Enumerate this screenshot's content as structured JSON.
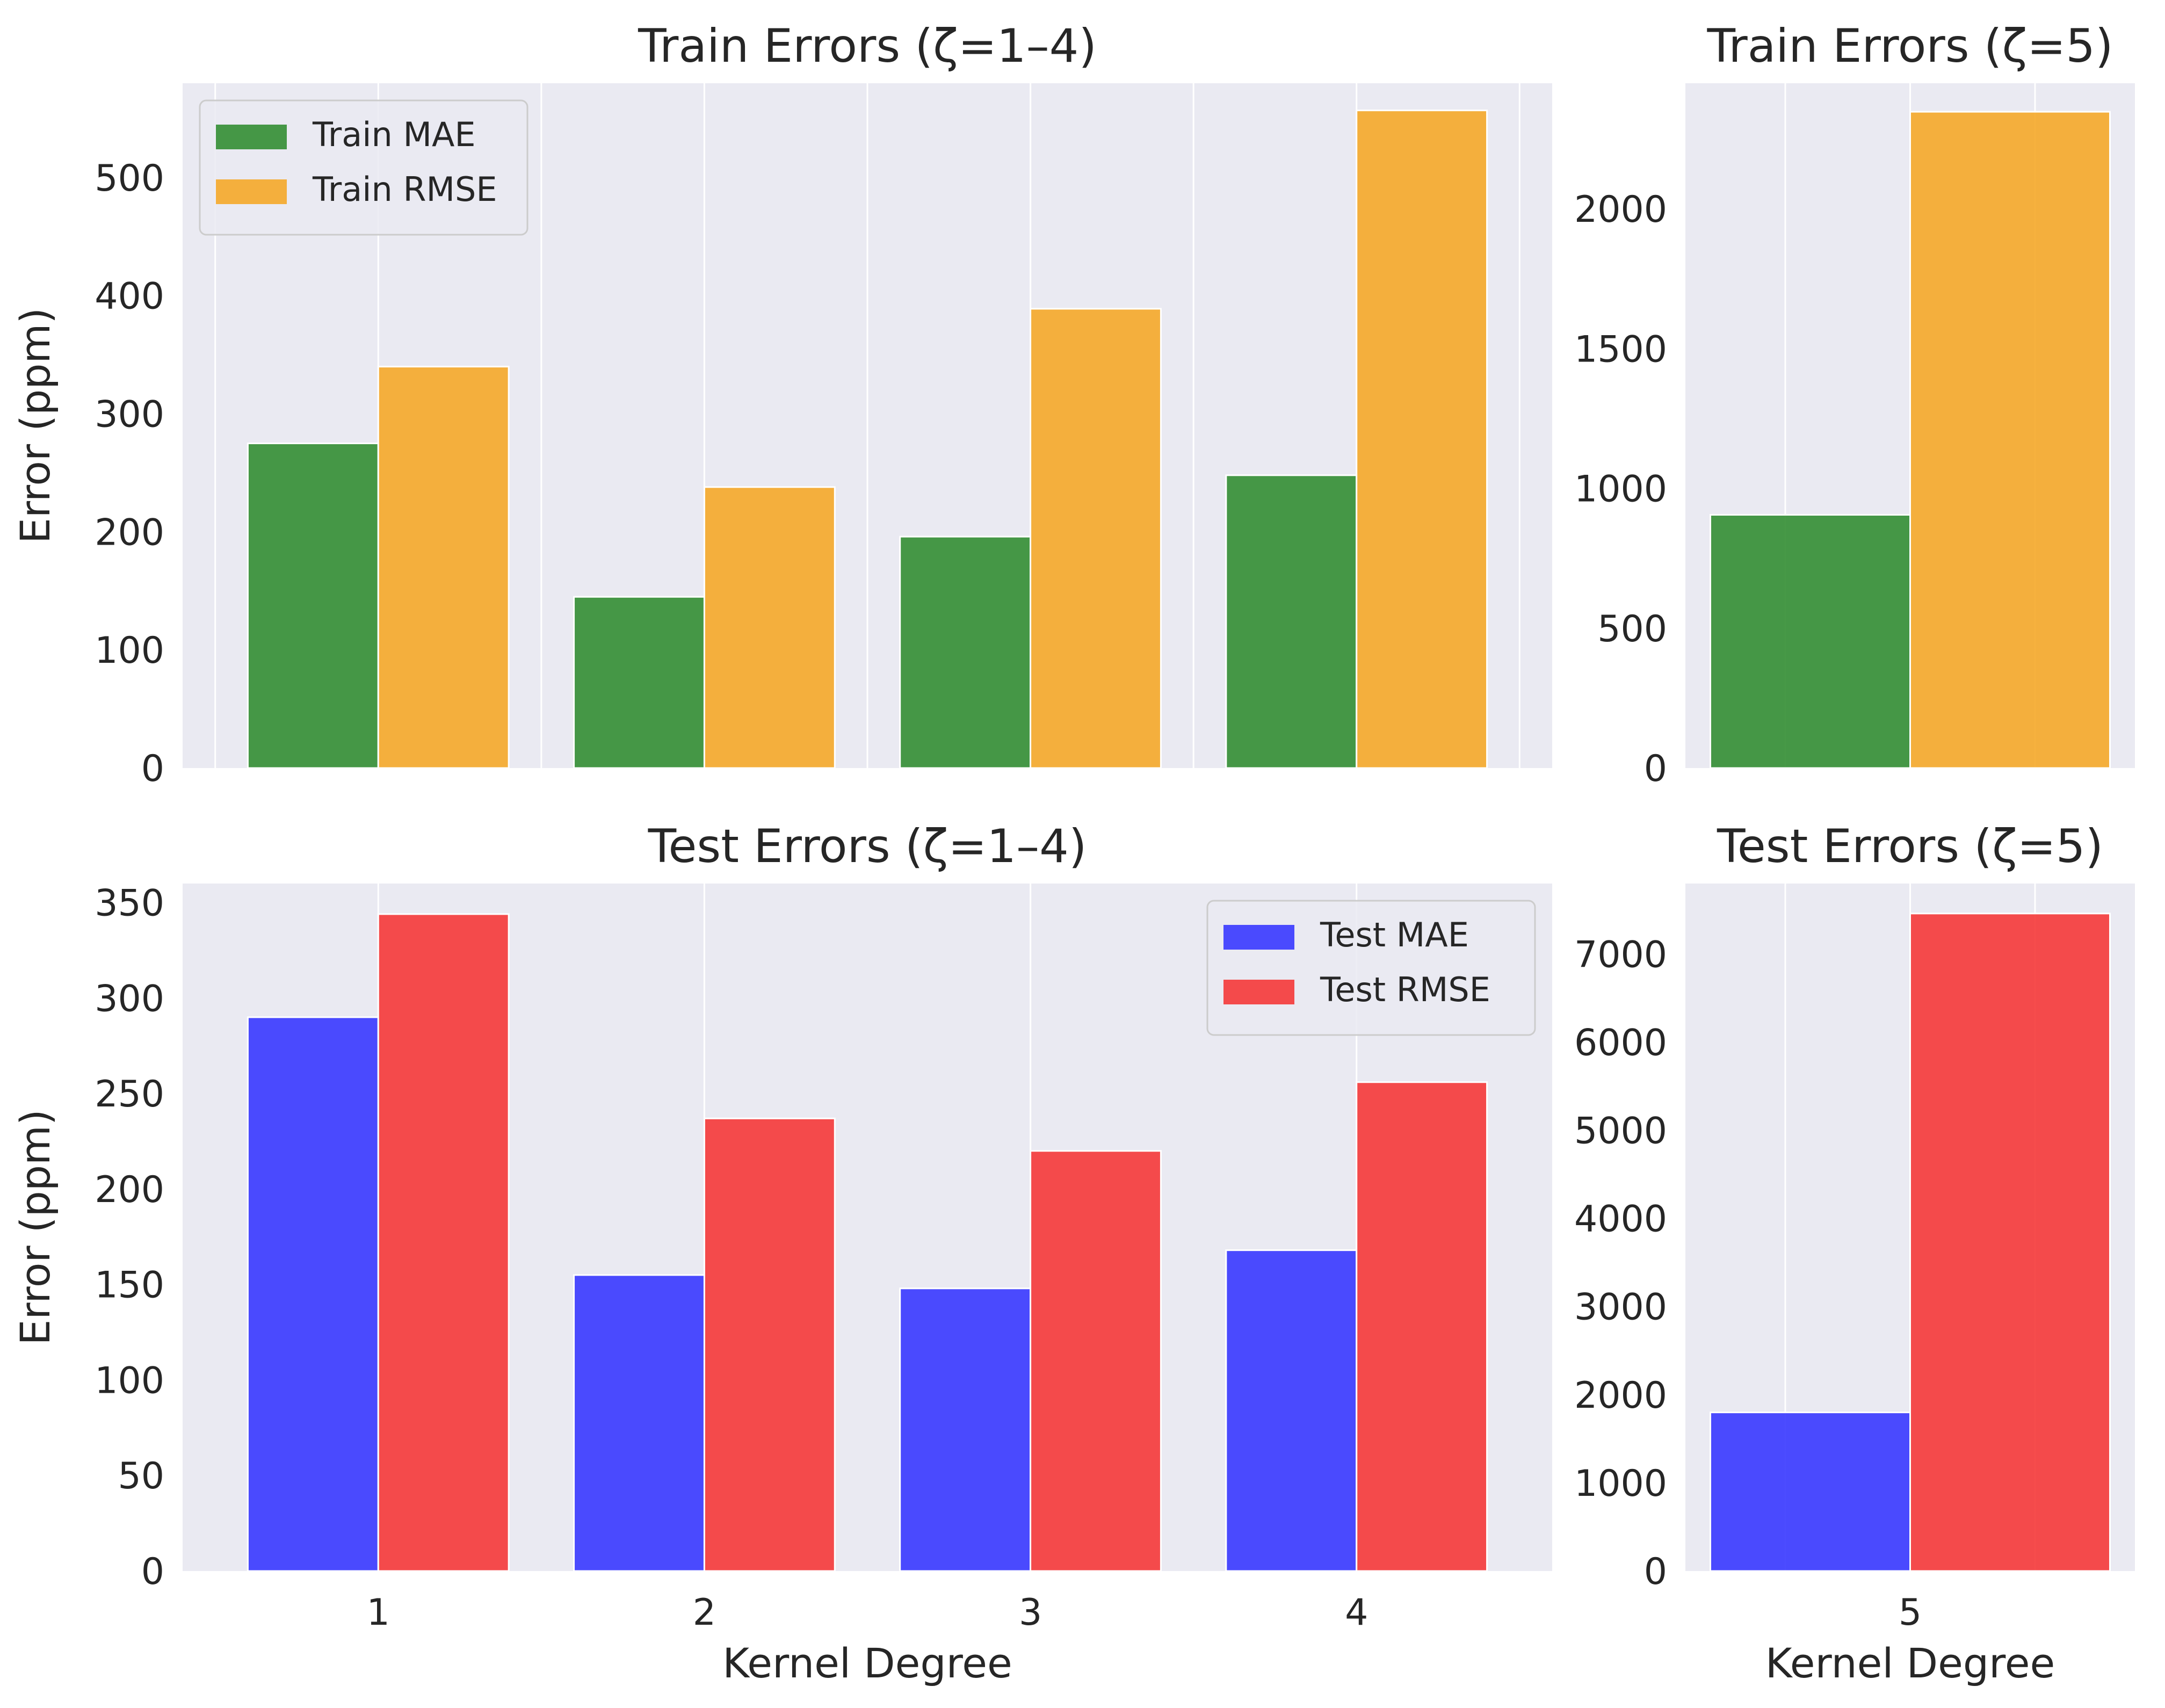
{
  "colors": {
    "axes_bg": "#EAEAF2",
    "grid": "#FFFFFF",
    "text": "#262626",
    "train_mae": "#2E8B2E",
    "train_rmse": "#F5A623",
    "test_mae": "#3333FF",
    "test_rmse": "#F53333"
  },
  "chart_data": [
    {
      "id": "train_1_4",
      "type": "bar",
      "title": "Train Errors (ζ=1–4)",
      "ylabel": "Error (ppm)",
      "xlabel": "",
      "categories": [
        "1",
        "2",
        "3",
        "4"
      ],
      "show_x_ticklabels": false,
      "series": [
        {
          "name": "Train MAE",
          "values": [
            275,
            145,
            196,
            248
          ],
          "color_key": "train_mae"
        },
        {
          "name": "Train RMSE",
          "values": [
            340,
            238,
            389,
            557
          ],
          "color_key": "train_rmse"
        }
      ],
      "ylim": [
        0,
        580
      ],
      "yticks": [
        0,
        100,
        200,
        300,
        400,
        500
      ],
      "xlim": [
        0.4,
        4.6
      ],
      "xgrid": [
        0.5,
        1,
        1.5,
        2,
        2.5,
        3,
        3.5,
        4,
        4.5
      ],
      "grid": true,
      "legend": "top-left"
    },
    {
      "id": "train_5",
      "type": "bar",
      "title": "Train Errors (ζ=5)",
      "ylabel": "",
      "xlabel": "",
      "categories": [
        "5"
      ],
      "show_x_ticklabels": false,
      "series": [
        {
          "name": "Train MAE",
          "values": [
            906
          ],
          "color_key": "train_mae"
        },
        {
          "name": "Train RMSE",
          "values": [
            2348
          ],
          "color_key": "train_rmse"
        }
      ],
      "ylim": [
        0,
        2450
      ],
      "yticks": [
        0,
        500,
        1000,
        1500,
        2000
      ],
      "xlim": [
        4.55,
        5.45
      ],
      "xgrid": [
        4.75,
        5,
        5.25
      ],
      "grid": true,
      "legend": "none"
    },
    {
      "id": "test_1_4",
      "type": "bar",
      "title": "Test Errors (ζ=1–4)",
      "ylabel": "Error (ppm)",
      "xlabel": "Kernel Degree",
      "categories": [
        "1",
        "2",
        "3",
        "4"
      ],
      "show_x_ticklabels": true,
      "series": [
        {
          "name": "Test MAE",
          "values": [
            290,
            155,
            148,
            168
          ],
          "color_key": "test_mae"
        },
        {
          "name": "Test RMSE",
          "values": [
            344,
            237,
            220,
            256
          ],
          "color_key": "test_rmse"
        }
      ],
      "ylim": [
        0,
        360
      ],
      "yticks": [
        0,
        50,
        100,
        150,
        200,
        250,
        300,
        350
      ],
      "xlim": [
        0.4,
        4.6
      ],
      "xgrid": [
        1,
        2,
        3,
        4
      ],
      "grid": true,
      "legend": "top-right"
    },
    {
      "id": "test_5",
      "type": "bar",
      "title": "Test Errors (ζ=5)",
      "ylabel": "",
      "xlabel": "Kernel Degree",
      "categories": [
        "5"
      ],
      "show_x_ticklabels": true,
      "series": [
        {
          "name": "Test MAE",
          "values": [
            1800
          ],
          "color_key": "test_mae"
        },
        {
          "name": "Test RMSE",
          "values": [
            7460
          ],
          "color_key": "test_rmse"
        }
      ],
      "ylim": [
        0,
        7800
      ],
      "yticks": [
        0,
        1000,
        2000,
        3000,
        4000,
        5000,
        6000,
        7000
      ],
      "xlim": [
        4.55,
        5.45
      ],
      "xgrid": [
        4.75,
        5,
        5.25
      ],
      "grid": true,
      "legend": "none"
    }
  ]
}
